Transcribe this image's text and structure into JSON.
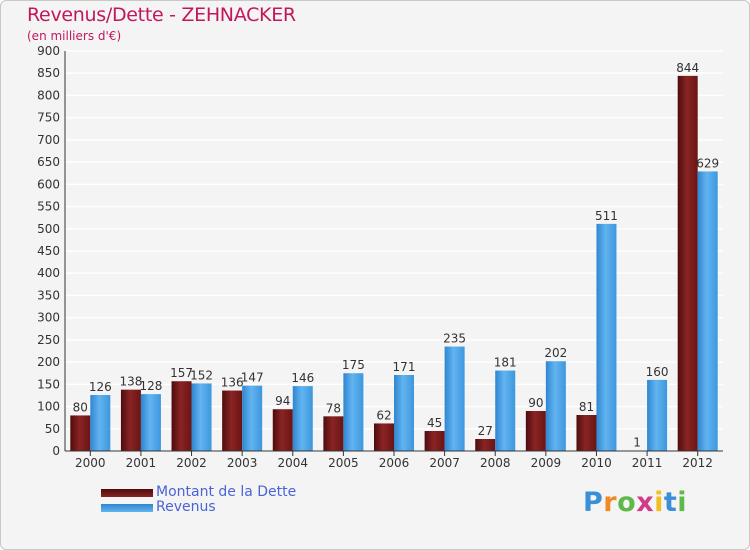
{
  "chart_data": {
    "type": "bar",
    "title": "Revenus/Dette - ZEHNACKER",
    "subtitle": "(en milliers d'€)",
    "categories": [
      "2000",
      "2001",
      "2002",
      "2003",
      "2004",
      "2005",
      "2006",
      "2007",
      "2008",
      "2009",
      "2010",
      "2011",
      "2012"
    ],
    "series": [
      {
        "name": "Montant de la Dette",
        "color": "#7a1a1a",
        "values": [
          80,
          138,
          157,
          136,
          94,
          78,
          62,
          45,
          27,
          90,
          81,
          1,
          844
        ]
      },
      {
        "name": "Revenus",
        "color": "#4aa3e6",
        "values": [
          126,
          128,
          152,
          147,
          146,
          175,
          171,
          235,
          181,
          202,
          511,
          160,
          629
        ]
      }
    ],
    "yticks": [
      "0",
      "50",
      "100",
      "150",
      "200",
      "250",
      "300",
      "350",
      "400",
      "450",
      "500",
      "550",
      "600",
      "650",
      "700",
      "750",
      "800",
      "850",
      "900"
    ],
    "ylim": [
      0,
      900
    ],
    "xlabel": "",
    "ylabel": "",
    "grid": true,
    "legend": "bottom-left"
  },
  "logo": {
    "letters": [
      "P",
      "r",
      "o",
      "x",
      "i",
      "t",
      "i"
    ],
    "colors": [
      "#3a8fd6",
      "#f08a24",
      "#5fb84a",
      "#d23a8a",
      "#f0c020",
      "#3a8fd6",
      "#5fb84a"
    ]
  }
}
